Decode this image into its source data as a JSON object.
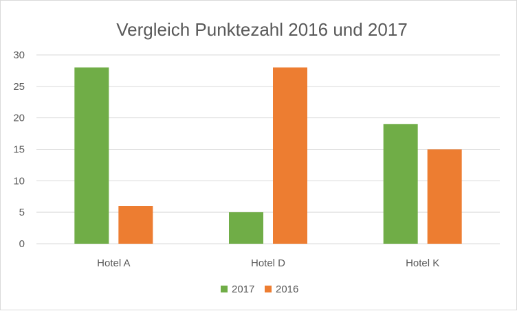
{
  "chart_data": {
    "type": "bar",
    "title": "Vergleich Punktezahl 2016 und 2017",
    "xlabel": "",
    "ylabel": "",
    "categories": [
      "Hotel A",
      "Hotel D",
      "Hotel K"
    ],
    "series": [
      {
        "name": "2017",
        "values": [
          28,
          5,
          19
        ],
        "color": "#70ad47"
      },
      {
        "name": "2016",
        "values": [
          6,
          28,
          15
        ],
        "color": "#ed7d31"
      }
    ],
    "ylim": [
      0,
      30
    ],
    "yticks": [
      "0",
      "5",
      "10",
      "15",
      "20",
      "25",
      "30"
    ],
    "grid": true,
    "legend_position": "bottom"
  }
}
